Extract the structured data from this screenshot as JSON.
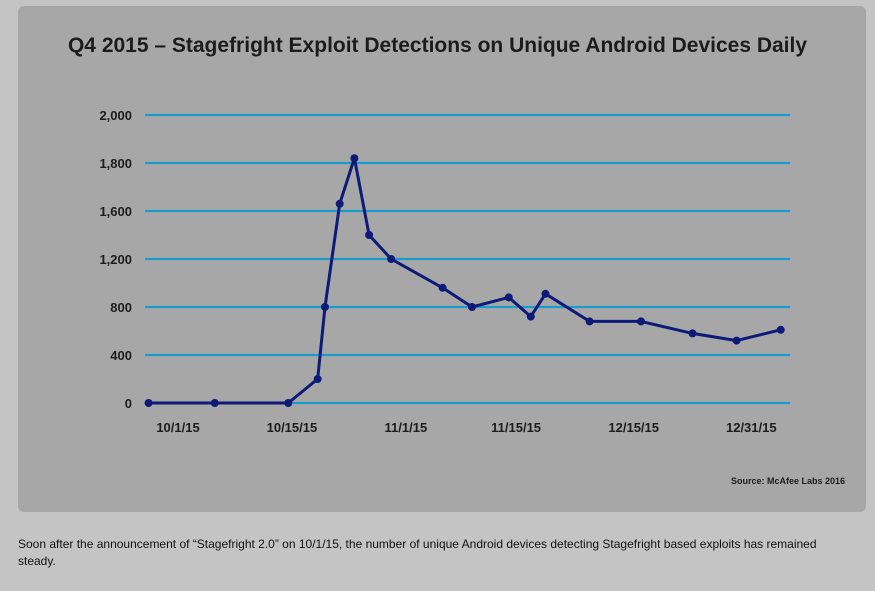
{
  "chart_data": {
    "type": "line",
    "title": "Q4 2015 – Stagefright Exploit Detections on Unique Android Devices Daily",
    "xlabel": "",
    "ylabel": "",
    "y_ticks": [
      "0",
      "400",
      "800",
      "1,200",
      "1,600",
      "1,800",
      "2,000"
    ],
    "y_tick_values": [
      0,
      400,
      800,
      1200,
      1600,
      1800,
      2000
    ],
    "x_ticks": [
      {
        "label": "10/1/15",
        "day": 0
      },
      {
        "label": "10/15/15",
        "day": 15.5
      },
      {
        "label": "11/1/15",
        "day": 31
      },
      {
        "label": "11/15/15",
        "day": 46
      },
      {
        "label": "12/15/15",
        "day": 62
      },
      {
        "label": "12/31/15",
        "day": 78
      }
    ],
    "x_unit": "days since 10/1/15 (approx.)",
    "grid": true,
    "series": [
      {
        "name": "Unique Android devices",
        "color": "#0d1a78",
        "points": [
          {
            "day": -4,
            "value": 0
          },
          {
            "day": 5,
            "value": 0
          },
          {
            "day": 15,
            "value": 0
          },
          {
            "day": 19,
            "value": 200
          },
          {
            "day": 20,
            "value": 800
          },
          {
            "day": 22,
            "value": 1630
          },
          {
            "day": 24,
            "value": 1820
          },
          {
            "day": 26,
            "value": 1400
          },
          {
            "day": 29,
            "value": 1200
          },
          {
            "day": 36,
            "value": 960
          },
          {
            "day": 40,
            "value": 800
          },
          {
            "day": 45,
            "value": 880
          },
          {
            "day": 48,
            "value": 720
          },
          {
            "day": 50,
            "value": 910
          },
          {
            "day": 56,
            "value": 680
          },
          {
            "day": 63,
            "value": 680
          },
          {
            "day": 70,
            "value": 580
          },
          {
            "day": 76,
            "value": 520
          },
          {
            "day": 82,
            "value": 610
          }
        ]
      }
    ],
    "grid_color": "#1c9ccc",
    "source": "Source: McAfee Labs 2016"
  },
  "caption": "Soon after the announcement of “Stagefright 2.0” on 10/1/15, the number of unique Android devices detecting Stagefright based exploits has remained steady."
}
